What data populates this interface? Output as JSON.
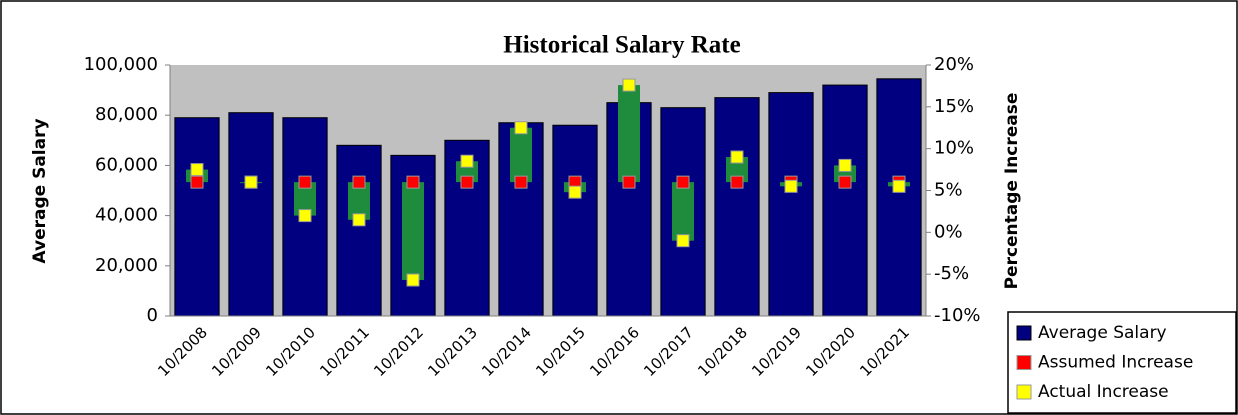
{
  "chart_data": {
    "type": "bar",
    "title": "Historical Salary Rate",
    "y_label": "Average Salary",
    "y2_label": "Percentage Increase",
    "categories": [
      "10/2008",
      "10/2009",
      "10/2010",
      "10/2011",
      "10/2012",
      "10/2013",
      "10/2014",
      "10/2015",
      "10/2016",
      "10/2017",
      "10/2018",
      "10/2019",
      "10/2020",
      "10/2021"
    ],
    "series": [
      {
        "name": "Average Salary",
        "color": "#000080",
        "type": "bar",
        "values": [
          79000,
          81000,
          79000,
          68000,
          64000,
          70000,
          77000,
          76000,
          85000,
          83000,
          87000,
          89000,
          92000,
          94500
        ]
      },
      {
        "name": "Assumed Increase",
        "color": "#ff0000",
        "type": "marker",
        "axis": "y2",
        "values": [
          6,
          6,
          6,
          6,
          6,
          6,
          6,
          6,
          6,
          6,
          6,
          6,
          6,
          6
        ]
      },
      {
        "name": "Actual Increase",
        "color": "#ffff00",
        "type": "marker",
        "axis": "y2",
        "values": [
          7.5,
          6,
          2,
          1.5,
          -5.7,
          8.5,
          12.5,
          4.8,
          17.6,
          -1,
          9,
          5.5,
          8,
          5.5
        ]
      }
    ],
    "updown_bar_color": "#1e8c3c",
    "ylim": [
      0,
      100000
    ],
    "yticks": [
      0,
      {
        "value": 20000,
        "label": "20,000"
      },
      {
        "value": 40000,
        "label": "40,000"
      },
      {
        "value": 60000,
        "label": "60,000"
      },
      {
        "value": 80000,
        "label": "80,000"
      },
      {
        "value": 100000,
        "label": "100,000"
      }
    ],
    "y2lim": [
      -10,
      20
    ],
    "y2ticks": [
      {
        "value": -10,
        "label": "-10%"
      },
      {
        "value": -5,
        "label": "-5%"
      },
      {
        "value": 0,
        "label": "0%"
      },
      {
        "value": 5,
        "label": "5%"
      },
      {
        "value": 10,
        "label": "10%"
      },
      {
        "value": 15,
        "label": "15%"
      },
      {
        "value": 20,
        "label": "20%"
      }
    ],
    "plot_background": "#c0c0c0"
  }
}
